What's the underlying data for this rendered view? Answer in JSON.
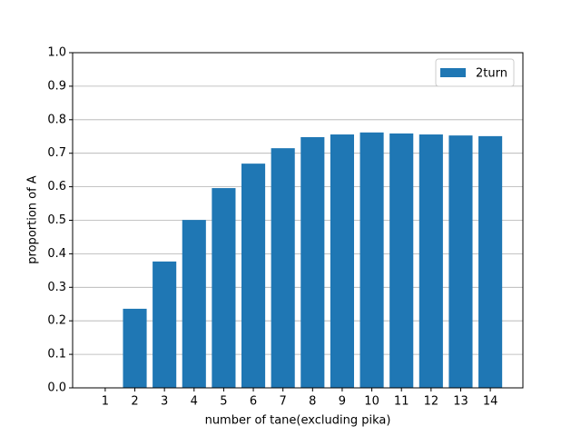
{
  "chart_data": {
    "type": "bar",
    "x": [
      1,
      2,
      3,
      4,
      5,
      6,
      7,
      8,
      9,
      10,
      11,
      12,
      13,
      14
    ],
    "series": [
      {
        "name": "2turn",
        "color": "#1f77b4",
        "values": [
          0,
          0.236,
          0.377,
          0.501,
          0.596,
          0.669,
          0.715,
          0.748,
          0.756,
          0.762,
          0.759,
          0.756,
          0.753,
          0.751
        ]
      }
    ],
    "xlabel": "number of tane(excluding pika)",
    "ylabel": "proportion of A",
    "xlim": [
      -0.1,
      15.1
    ],
    "xticks": [
      1,
      2,
      3,
      4,
      5,
      6,
      7,
      8,
      9,
      10,
      11,
      12,
      13,
      14
    ],
    "ylim": [
      0,
      1
    ],
    "yticks": [
      {
        "value": 0,
        "label": "0.0"
      },
      {
        "value": 0.1,
        "label": "0.1"
      },
      {
        "value": 0.2,
        "label": "0.2"
      },
      {
        "value": 0.3,
        "label": "0.3"
      },
      {
        "value": 0.4,
        "label": "0.4"
      },
      {
        "value": 0.5,
        "label": "0.5"
      },
      {
        "value": 0.6,
        "label": "0.6"
      },
      {
        "value": 0.7,
        "label": "0.7"
      },
      {
        "value": 0.8,
        "label": "0.8"
      },
      {
        "value": 0.9,
        "label": "0.9"
      },
      {
        "value": 1,
        "label": "1.0"
      }
    ],
    "bar_width": 0.8,
    "grid": "y",
    "legend": "upper right"
  }
}
